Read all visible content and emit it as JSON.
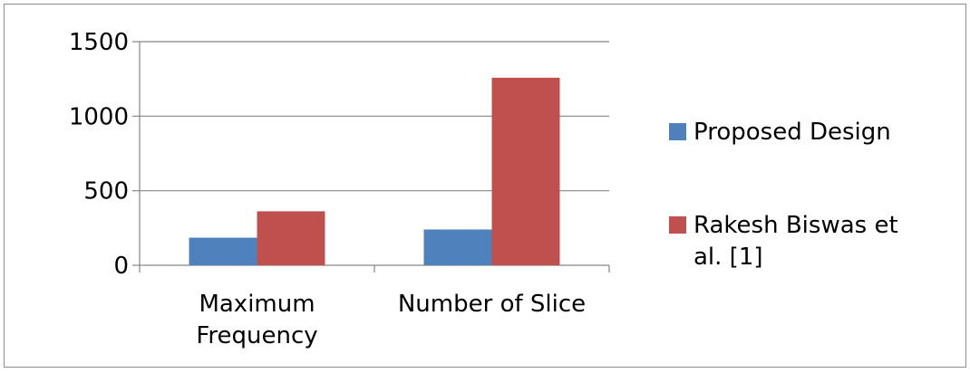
{
  "chart_data": {
    "type": "bar",
    "title": "",
    "xlabel": "",
    "ylabel": "",
    "categories": [
      [
        "Maximum",
        "Frequency"
      ],
      [
        "Number of Slice"
      ]
    ],
    "series": [
      {
        "name": [
          "Proposed Design"
        ],
        "color": "#4F81BD",
        "values": [
          185,
          240
        ]
      },
      {
        "name": [
          "Rakesh Biswas et",
          "al. [1]"
        ],
        "color": "#C0504D",
        "values": [
          362,
          1258
        ]
      }
    ],
    "ylim": [
      0,
      1500
    ],
    "yticks": [
      0,
      500,
      1000,
      1500
    ],
    "grid": true,
    "legend_position": "right"
  }
}
